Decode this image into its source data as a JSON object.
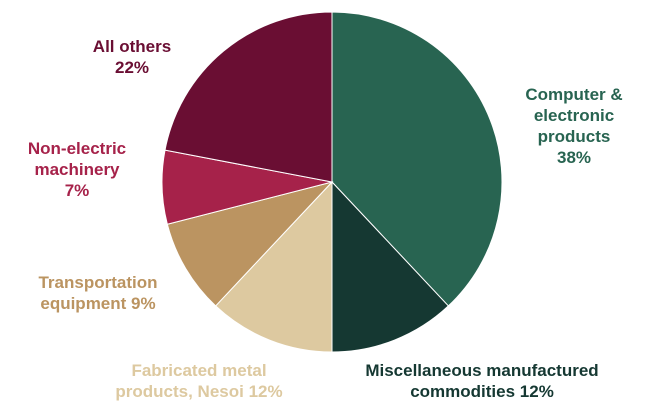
{
  "chart_data": {
    "type": "pie",
    "title": "",
    "start_angle_deg": 0,
    "direction": "clockwise",
    "slices": [
      {
        "label_lines": [
          "Computer &",
          "electronic",
          "products"
        ],
        "value_text": "38%",
        "value": 38,
        "color": "#286451",
        "label_color": "#286451"
      },
      {
        "label_lines": [
          "Miscellaneous manufactured",
          "commodities"
        ],
        "value_text": "12%",
        "value": 12,
        "color": "#153832",
        "label_color": "#153832"
      },
      {
        "label_lines": [
          "Fabricated metal",
          "products, Nesoi"
        ],
        "value_text": "12%",
        "value": 12,
        "color": "#DDC9A0",
        "label_color": "#DDC9A0"
      },
      {
        "label_lines": [
          "Transportation",
          "equipment"
        ],
        "value_text": "9%",
        "value": 9,
        "color": "#BB9461",
        "label_color": "#BB9461"
      },
      {
        "label_lines": [
          "Non-electric",
          "machinery"
        ],
        "value_text": "7%",
        "value": 7,
        "color": "#A6224A",
        "label_color": "#A6224A"
      },
      {
        "label_lines": [
          "All others"
        ],
        "value_text": "22%",
        "value": 22,
        "color": "#6A0E33",
        "label_color": "#6A0E33"
      }
    ]
  }
}
